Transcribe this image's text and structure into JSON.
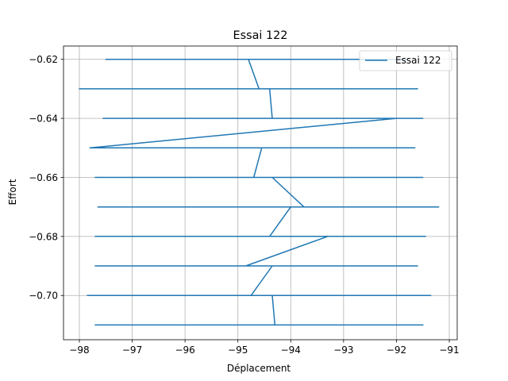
{
  "chart_data": {
    "type": "line",
    "title": "Essai 122",
    "xlabel": "Déplacement",
    "ylabel": "Effort",
    "xlim": [
      -98.3,
      -90.85
    ],
    "ylim": [
      -0.715,
      -0.6155
    ],
    "xticks": [
      -98,
      -97,
      -96,
      -95,
      -94,
      -93,
      -92,
      -91
    ],
    "xtick_labels": [
      "−98",
      "−97",
      "−96",
      "−95",
      "−94",
      "−93",
      "−92",
      "−91"
    ],
    "yticks": [
      -0.62,
      -0.64,
      -0.66,
      -0.68,
      -0.7
    ],
    "ytick_labels": [
      "−0.62",
      "−0.64",
      "−0.66",
      "−0.68",
      "−0.70"
    ],
    "grid": true,
    "legend_position": "top-right",
    "color": "#1f77b4",
    "series": [
      {
        "name": "Essai 122",
        "x": [
          -94.4,
          -91.8,
          -97.5,
          -94.8,
          -94.6,
          -98.0,
          -91.6,
          -94.4,
          -94.35,
          -97.55,
          -91.5,
          -92.0,
          -97.8,
          -91.65,
          -94.55,
          -94.7,
          -97.7,
          -91.5,
          -94.35,
          -93.75,
          -97.65,
          -91.2,
          -94.0,
          -94.4,
          -97.7,
          -91.45,
          -93.3,
          -94.85,
          -97.7,
          -91.6,
          -94.35,
          -94.75,
          -97.85,
          -91.35,
          -94.35,
          -94.3,
          -97.7,
          -91.5
        ],
        "y": [
          -0.62,
          -0.62,
          -0.62,
          -0.62,
          -0.63,
          -0.63,
          -0.63,
          -0.63,
          -0.64,
          -0.64,
          -0.64,
          -0.64,
          -0.65,
          -0.65,
          -0.65,
          -0.66,
          -0.66,
          -0.66,
          -0.66,
          -0.67,
          -0.67,
          -0.67,
          -0.67,
          -0.68,
          -0.68,
          -0.68,
          -0.68,
          -0.69,
          -0.69,
          -0.69,
          -0.69,
          -0.7,
          -0.7,
          -0.7,
          -0.7,
          -0.71,
          -0.71,
          -0.71
        ]
      }
    ]
  }
}
